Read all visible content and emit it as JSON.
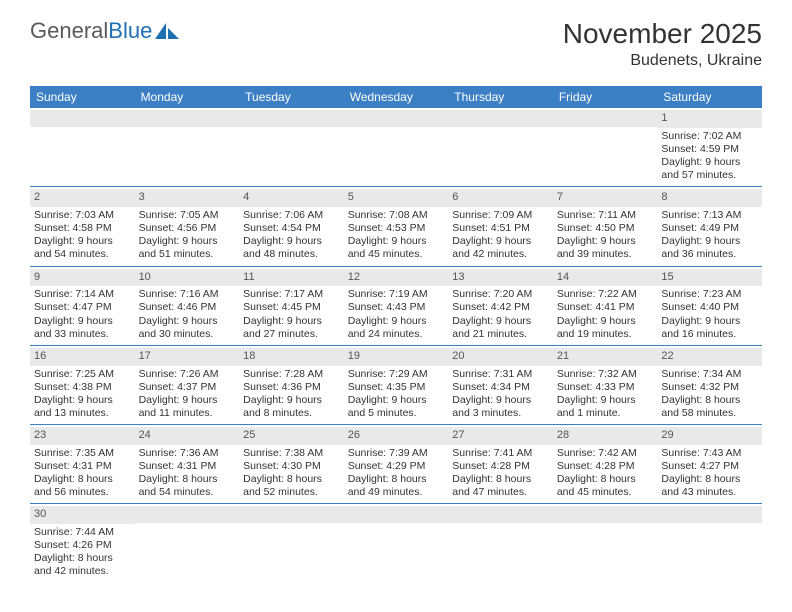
{
  "brand": {
    "part1": "General",
    "part2": "Blue"
  },
  "month_title": "November 2025",
  "location": "Budenets, Ukraine",
  "colors": {
    "header_bar": "#3b7fc4",
    "header_text": "#ffffff",
    "daynum_bg": "#e9e9e9",
    "rule": "#3b7fc4",
    "brand_blue": "#1f6fb2"
  },
  "days_of_week": [
    "Sunday",
    "Monday",
    "Tuesday",
    "Wednesday",
    "Thursday",
    "Friday",
    "Saturday"
  ],
  "weeks": [
    [
      null,
      null,
      null,
      null,
      null,
      null,
      {
        "n": "1",
        "sunrise": "Sunrise: 7:02 AM",
        "sunset": "Sunset: 4:59 PM",
        "daylight1": "Daylight: 9 hours",
        "daylight2": "and 57 minutes."
      }
    ],
    [
      {
        "n": "2",
        "sunrise": "Sunrise: 7:03 AM",
        "sunset": "Sunset: 4:58 PM",
        "daylight1": "Daylight: 9 hours",
        "daylight2": "and 54 minutes."
      },
      {
        "n": "3",
        "sunrise": "Sunrise: 7:05 AM",
        "sunset": "Sunset: 4:56 PM",
        "daylight1": "Daylight: 9 hours",
        "daylight2": "and 51 minutes."
      },
      {
        "n": "4",
        "sunrise": "Sunrise: 7:06 AM",
        "sunset": "Sunset: 4:54 PM",
        "daylight1": "Daylight: 9 hours",
        "daylight2": "and 48 minutes."
      },
      {
        "n": "5",
        "sunrise": "Sunrise: 7:08 AM",
        "sunset": "Sunset: 4:53 PM",
        "daylight1": "Daylight: 9 hours",
        "daylight2": "and 45 minutes."
      },
      {
        "n": "6",
        "sunrise": "Sunrise: 7:09 AM",
        "sunset": "Sunset: 4:51 PM",
        "daylight1": "Daylight: 9 hours",
        "daylight2": "and 42 minutes."
      },
      {
        "n": "7",
        "sunrise": "Sunrise: 7:11 AM",
        "sunset": "Sunset: 4:50 PM",
        "daylight1": "Daylight: 9 hours",
        "daylight2": "and 39 minutes."
      },
      {
        "n": "8",
        "sunrise": "Sunrise: 7:13 AM",
        "sunset": "Sunset: 4:49 PM",
        "daylight1": "Daylight: 9 hours",
        "daylight2": "and 36 minutes."
      }
    ],
    [
      {
        "n": "9",
        "sunrise": "Sunrise: 7:14 AM",
        "sunset": "Sunset: 4:47 PM",
        "daylight1": "Daylight: 9 hours",
        "daylight2": "and 33 minutes."
      },
      {
        "n": "10",
        "sunrise": "Sunrise: 7:16 AM",
        "sunset": "Sunset: 4:46 PM",
        "daylight1": "Daylight: 9 hours",
        "daylight2": "and 30 minutes."
      },
      {
        "n": "11",
        "sunrise": "Sunrise: 7:17 AM",
        "sunset": "Sunset: 4:45 PM",
        "daylight1": "Daylight: 9 hours",
        "daylight2": "and 27 minutes."
      },
      {
        "n": "12",
        "sunrise": "Sunrise: 7:19 AM",
        "sunset": "Sunset: 4:43 PM",
        "daylight1": "Daylight: 9 hours",
        "daylight2": "and 24 minutes."
      },
      {
        "n": "13",
        "sunrise": "Sunrise: 7:20 AM",
        "sunset": "Sunset: 4:42 PM",
        "daylight1": "Daylight: 9 hours",
        "daylight2": "and 21 minutes."
      },
      {
        "n": "14",
        "sunrise": "Sunrise: 7:22 AM",
        "sunset": "Sunset: 4:41 PM",
        "daylight1": "Daylight: 9 hours",
        "daylight2": "and 19 minutes."
      },
      {
        "n": "15",
        "sunrise": "Sunrise: 7:23 AM",
        "sunset": "Sunset: 4:40 PM",
        "daylight1": "Daylight: 9 hours",
        "daylight2": "and 16 minutes."
      }
    ],
    [
      {
        "n": "16",
        "sunrise": "Sunrise: 7:25 AM",
        "sunset": "Sunset: 4:38 PM",
        "daylight1": "Daylight: 9 hours",
        "daylight2": "and 13 minutes."
      },
      {
        "n": "17",
        "sunrise": "Sunrise: 7:26 AM",
        "sunset": "Sunset: 4:37 PM",
        "daylight1": "Daylight: 9 hours",
        "daylight2": "and 11 minutes."
      },
      {
        "n": "18",
        "sunrise": "Sunrise: 7:28 AM",
        "sunset": "Sunset: 4:36 PM",
        "daylight1": "Daylight: 9 hours",
        "daylight2": "and 8 minutes."
      },
      {
        "n": "19",
        "sunrise": "Sunrise: 7:29 AM",
        "sunset": "Sunset: 4:35 PM",
        "daylight1": "Daylight: 9 hours",
        "daylight2": "and 5 minutes."
      },
      {
        "n": "20",
        "sunrise": "Sunrise: 7:31 AM",
        "sunset": "Sunset: 4:34 PM",
        "daylight1": "Daylight: 9 hours",
        "daylight2": "and 3 minutes."
      },
      {
        "n": "21",
        "sunrise": "Sunrise: 7:32 AM",
        "sunset": "Sunset: 4:33 PM",
        "daylight1": "Daylight: 9 hours",
        "daylight2": "and 1 minute."
      },
      {
        "n": "22",
        "sunrise": "Sunrise: 7:34 AM",
        "sunset": "Sunset: 4:32 PM",
        "daylight1": "Daylight: 8 hours",
        "daylight2": "and 58 minutes."
      }
    ],
    [
      {
        "n": "23",
        "sunrise": "Sunrise: 7:35 AM",
        "sunset": "Sunset: 4:31 PM",
        "daylight1": "Daylight: 8 hours",
        "daylight2": "and 56 minutes."
      },
      {
        "n": "24",
        "sunrise": "Sunrise: 7:36 AM",
        "sunset": "Sunset: 4:31 PM",
        "daylight1": "Daylight: 8 hours",
        "daylight2": "and 54 minutes."
      },
      {
        "n": "25",
        "sunrise": "Sunrise: 7:38 AM",
        "sunset": "Sunset: 4:30 PM",
        "daylight1": "Daylight: 8 hours",
        "daylight2": "and 52 minutes."
      },
      {
        "n": "26",
        "sunrise": "Sunrise: 7:39 AM",
        "sunset": "Sunset: 4:29 PM",
        "daylight1": "Daylight: 8 hours",
        "daylight2": "and 49 minutes."
      },
      {
        "n": "27",
        "sunrise": "Sunrise: 7:41 AM",
        "sunset": "Sunset: 4:28 PM",
        "daylight1": "Daylight: 8 hours",
        "daylight2": "and 47 minutes."
      },
      {
        "n": "28",
        "sunrise": "Sunrise: 7:42 AM",
        "sunset": "Sunset: 4:28 PM",
        "daylight1": "Daylight: 8 hours",
        "daylight2": "and 45 minutes."
      },
      {
        "n": "29",
        "sunrise": "Sunrise: 7:43 AM",
        "sunset": "Sunset: 4:27 PM",
        "daylight1": "Daylight: 8 hours",
        "daylight2": "and 43 minutes."
      }
    ],
    [
      {
        "n": "30",
        "sunrise": "Sunrise: 7:44 AM",
        "sunset": "Sunset: 4:26 PM",
        "daylight1": "Daylight: 8 hours",
        "daylight2": "and 42 minutes."
      },
      null,
      null,
      null,
      null,
      null,
      null
    ]
  ]
}
